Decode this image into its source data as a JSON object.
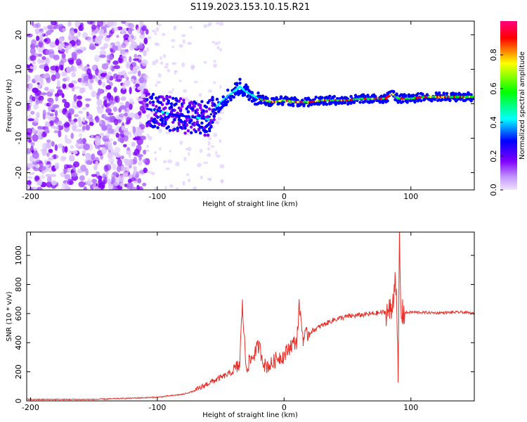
{
  "title": "S119.2023.153.10.15.R21",
  "chart_data": [
    {
      "type": "heatmap",
      "xlabel": "Height of straight line (km)",
      "ylabel": "Frequency (Hz)",
      "xlim": [
        -203,
        150
      ],
      "ylim": [
        -25,
        24
      ],
      "xticks": [
        -200,
        -100,
        0,
        100
      ],
      "yticks": [
        -20,
        -10,
        0,
        10,
        20
      ],
      "colorbar": {
        "label": "Normalized spectral amplitude",
        "range": [
          0,
          1
        ],
        "ticks": [
          0.0,
          0.2,
          0.4,
          0.6,
          0.8
        ],
        "tick_labels": [
          "0.0",
          "0.2",
          "0.4",
          "0.6",
          "0.8"
        ],
        "colors": [
          "#f0e4ff",
          "#8000ff",
          "#0000ff",
          "#00ffff",
          "#00ff00",
          "#ffff00",
          "#ff0000",
          "#ff0080"
        ]
      },
      "ridge": {
        "x": [
          -108,
          -100,
          -90,
          -80,
          -70,
          -60,
          -55,
          -50,
          -45,
          -40,
          -35,
          -30,
          -25,
          -20,
          -10,
          0,
          10,
          20,
          30,
          40,
          50,
          60,
          70,
          80,
          85,
          90,
          100,
          110,
          120,
          130,
          140,
          150
        ],
        "y": [
          -1.5,
          -2,
          -3,
          -3.5,
          -4,
          -4.5,
          -1.5,
          0.5,
          2,
          3.5,
          5,
          3.5,
          2.5,
          1.5,
          0.5,
          1,
          0.5,
          0.5,
          1,
          1,
          1,
          1.5,
          1.5,
          1.5,
          3,
          1.5,
          1.5,
          2,
          2,
          2,
          2,
          2
        ]
      }
    },
    {
      "type": "line",
      "xlabel": "Height of straight line (km)",
      "ylabel": "SNR (10 * v/v)",
      "xlim": [
        -203,
        150
      ],
      "ylim": [
        0,
        1160
      ],
      "xticks": [
        -200,
        -100,
        0,
        100
      ],
      "yticks": [
        0,
        200,
        400,
        600,
        800,
        1000
      ],
      "color": "#e8302a",
      "series": [
        {
          "x": [
            -203,
            -150,
            -100,
            -80,
            -70,
            -60,
            -50,
            -40,
            -35,
            -33,
            -30,
            -25,
            -20,
            -15,
            -10,
            -5,
            0,
            5,
            10,
            12,
            15,
            20,
            30,
            40,
            50,
            60,
            70,
            80,
            85,
            88,
            90,
            91,
            92,
            95,
            100,
            120,
            140,
            150
          ],
          "y": [
            10,
            10,
            25,
            45,
            70,
            120,
            160,
            200,
            250,
            670,
            230,
            300,
            380,
            240,
            250,
            300,
            310,
            380,
            410,
            660,
            430,
            470,
            520,
            560,
            580,
            590,
            600,
            610,
            620,
            900,
            140,
            1150,
            600,
            605,
            610,
            605,
            610,
            600
          ]
        }
      ]
    }
  ]
}
